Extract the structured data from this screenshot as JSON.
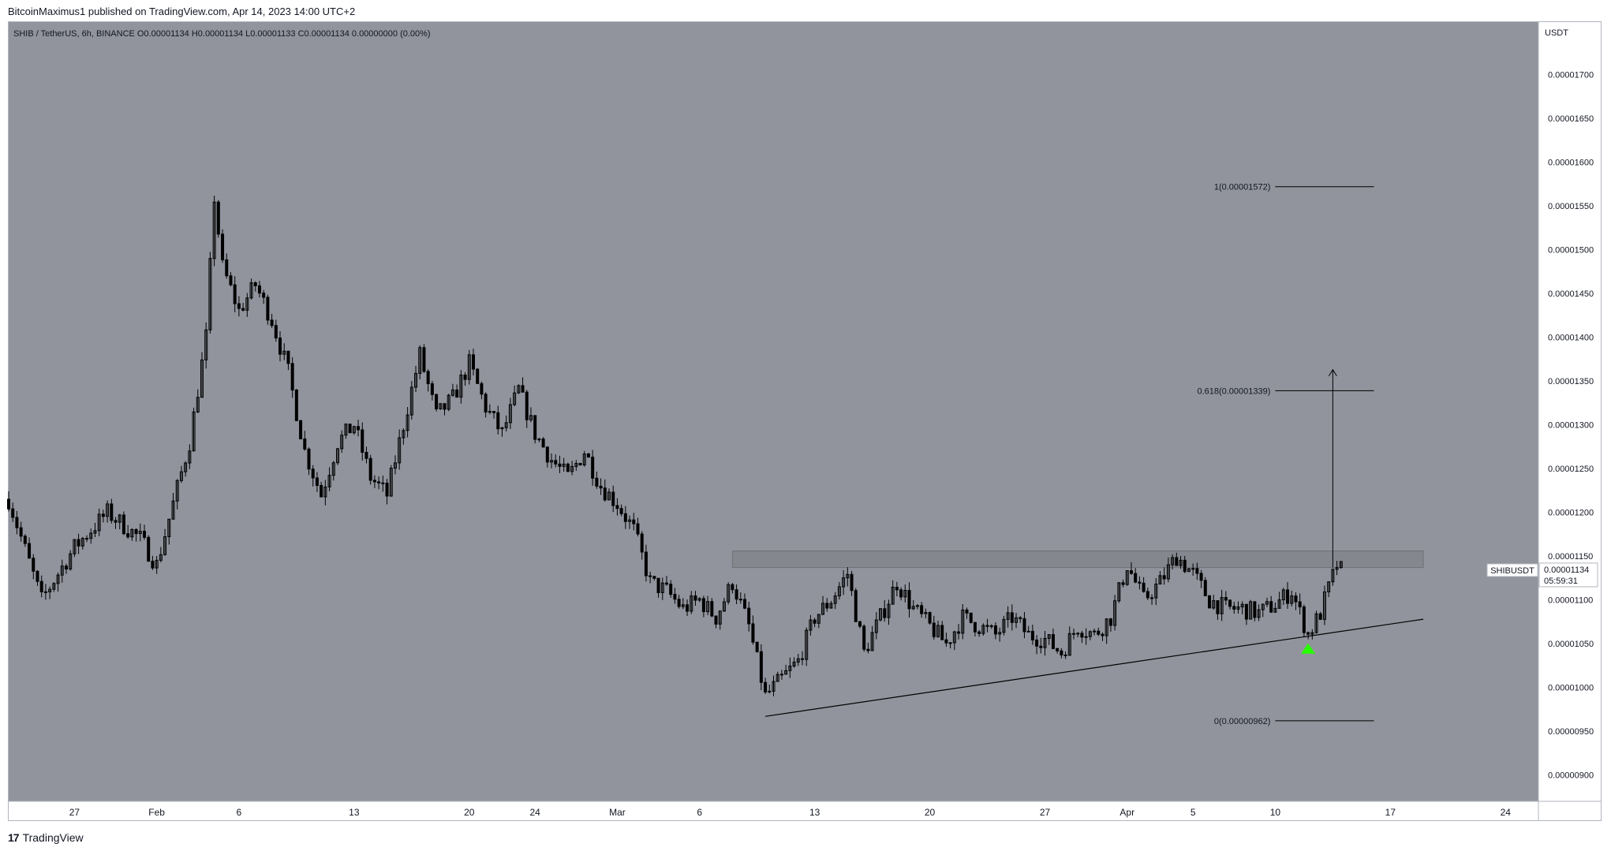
{
  "header": {
    "publish_line": "BitcoinMaximus1 published on TradingView.com, Apr 14, 2023 14:00 UTC+2"
  },
  "footer": {
    "brand": "TradingView"
  },
  "colors": {
    "plot_bg": "#91949d",
    "candle": "#000000",
    "zone": "#808388",
    "marker": "#26ff00"
  },
  "chart_data": {
    "type": "candlestick",
    "symbol_line": "SHIB / TetherUS, 6h, BINANCE",
    "ohlc_readout": {
      "O": "0.00001134",
      "H": "0.00001134",
      "L": "0.00001133",
      "C": "0.00001134",
      "change": "0.00000000 (0.00%)"
    },
    "y_axis": {
      "unit_label": "USDT",
      "ylim": [
        8.7e-06,
        1.76e-05
      ],
      "ticks": [
        "0.00001700",
        "0.00001650",
        "0.00001600",
        "0.00001550",
        "0.00001500",
        "0.00001450",
        "0.00001400",
        "0.00001350",
        "0.00001300",
        "0.00001250",
        "0.00001200",
        "0.00001150",
        "0.00001100",
        "0.00001050",
        "0.00001000",
        "0.00000950",
        "0.00000900"
      ]
    },
    "x_axis": {
      "xlim": [
        "2023-01-23",
        "2023-04-26"
      ],
      "ticks": [
        {
          "date": "2023-01-27",
          "label": "27"
        },
        {
          "date": "2023-02-01",
          "label": "Feb"
        },
        {
          "date": "2023-02-06",
          "label": "6"
        },
        {
          "date": "2023-02-13",
          "label": "13"
        },
        {
          "date": "2023-02-20",
          "label": "20"
        },
        {
          "date": "2023-02-24",
          "label": "24"
        },
        {
          "date": "2023-03-01",
          "label": "Mar"
        },
        {
          "date": "2023-03-06",
          "label": "6"
        },
        {
          "date": "2023-03-13",
          "label": "13"
        },
        {
          "date": "2023-03-20",
          "label": "20"
        },
        {
          "date": "2023-03-27",
          "label": "27"
        },
        {
          "date": "2023-04-01",
          "label": "Apr"
        },
        {
          "date": "2023-04-05",
          "label": "5"
        },
        {
          "date": "2023-04-10",
          "label": "10"
        },
        {
          "date": "2023-04-17",
          "label": "17"
        },
        {
          "date": "2023-04-24",
          "label": "24"
        }
      ]
    },
    "price_path": [
      [
        "2023-01-23",
        1.215e-05
      ],
      [
        "2023-01-25",
        1.1e-05
      ],
      [
        "2023-01-27",
        1.16e-05
      ],
      [
        "2023-01-29",
        1.2e-05
      ],
      [
        "2023-01-31",
        1.17e-05
      ],
      [
        "2023-02-01",
        1.14e-05
      ],
      [
        "2023-02-02",
        1.21e-05
      ],
      [
        "2023-02-03",
        1.28e-05
      ],
      [
        "2023-02-04",
        1.4e-05
      ],
      [
        "2023-02-04T12:00",
        1.56e-05
      ],
      [
        "2023-02-05",
        1.48e-05
      ],
      [
        "2023-02-06",
        1.43e-05
      ],
      [
        "2023-02-07",
        1.46e-05
      ],
      [
        "2023-02-08",
        1.42e-05
      ],
      [
        "2023-02-09",
        1.36e-05
      ],
      [
        "2023-02-10",
        1.27e-05
      ],
      [
        "2023-02-11",
        1.22e-05
      ],
      [
        "2023-02-12",
        1.28e-05
      ],
      [
        "2023-02-13",
        1.3e-05
      ],
      [
        "2023-02-14",
        1.24e-05
      ],
      [
        "2023-02-15",
        1.22e-05
      ],
      [
        "2023-02-16",
        1.3e-05
      ],
      [
        "2023-02-17",
        1.38e-05
      ],
      [
        "2023-02-18",
        1.31e-05
      ],
      [
        "2023-02-19",
        1.33e-05
      ],
      [
        "2023-02-20",
        1.37e-05
      ],
      [
        "2023-02-21",
        1.32e-05
      ],
      [
        "2023-02-22",
        1.29e-05
      ],
      [
        "2023-02-23",
        1.34e-05
      ],
      [
        "2023-02-24",
        1.29e-05
      ],
      [
        "2023-02-25",
        1.26e-05
      ],
      [
        "2023-02-26",
        1.24e-05
      ],
      [
        "2023-02-27",
        1.27e-05
      ],
      [
        "2023-02-28",
        1.23e-05
      ],
      [
        "2023-03-01",
        1.21e-05
      ],
      [
        "2023-03-02",
        1.18e-05
      ],
      [
        "2023-03-03",
        1.12e-05
      ],
      [
        "2023-03-04",
        1.11e-05
      ],
      [
        "2023-03-05",
        1.09e-05
      ],
      [
        "2023-03-06",
        1.1e-05
      ],
      [
        "2023-03-07",
        1.08e-05
      ],
      [
        "2023-03-08",
        1.12e-05
      ],
      [
        "2023-03-09",
        1.07e-05
      ],
      [
        "2023-03-10",
        9.9e-06
      ],
      [
        "2023-03-11",
        1.01e-05
      ],
      [
        "2023-03-12",
        1.03e-05
      ],
      [
        "2023-03-13",
        1.08e-05
      ],
      [
        "2023-03-14",
        1.1e-05
      ],
      [
        "2023-03-15",
        1.13e-05
      ],
      [
        "2023-03-16",
        1.04e-05
      ],
      [
        "2023-03-17",
        1.08e-05
      ],
      [
        "2023-03-18",
        1.12e-05
      ],
      [
        "2023-03-19",
        1.09e-05
      ],
      [
        "2023-03-20",
        1.07e-05
      ],
      [
        "2023-03-21",
        1.05e-05
      ],
      [
        "2023-03-22",
        1.08e-05
      ],
      [
        "2023-03-23",
        1.07e-05
      ],
      [
        "2023-03-24",
        1.06e-05
      ],
      [
        "2023-03-25",
        1.08e-05
      ],
      [
        "2023-03-26",
        1.06e-05
      ],
      [
        "2023-03-27",
        1.055e-05
      ],
      [
        "2023-03-28",
        1.04e-05
      ],
      [
        "2023-03-29",
        1.07e-05
      ],
      [
        "2023-03-30",
        1.06e-05
      ],
      [
        "2023-03-31",
        1.08e-05
      ],
      [
        "2023-04-01",
        1.14e-05
      ],
      [
        "2023-04-02",
        1.1e-05
      ],
      [
        "2023-04-03",
        1.12e-05
      ],
      [
        "2023-04-04",
        1.15e-05
      ],
      [
        "2023-04-05",
        1.13e-05
      ],
      [
        "2023-04-06",
        1.1e-05
      ],
      [
        "2023-04-07",
        1.09e-05
      ],
      [
        "2023-04-08",
        1.09e-05
      ],
      [
        "2023-04-09",
        1.085e-05
      ],
      [
        "2023-04-10",
        1.095e-05
      ],
      [
        "2023-04-11",
        1.11e-05
      ],
      [
        "2023-04-12",
        1.06e-05
      ],
      [
        "2023-04-12T18:00",
        1.085e-05
      ],
      [
        "2023-04-13",
        1.1e-05
      ],
      [
        "2023-04-13T18:00",
        1.14e-05
      ],
      [
        "2023-04-14",
        1.134e-05
      ]
    ],
    "resistance_zone": {
      "from": "2023-03-08",
      "to": "2023-04-19",
      "low": 1.137e-05,
      "high": 1.156e-05
    },
    "support_line": [
      [
        "2023-03-10",
        9.67e-06
      ],
      [
        "2023-04-19",
        1.078e-05
      ]
    ],
    "fib_levels": [
      {
        "label": "1(0.00001572)",
        "value": 1.572e-05
      },
      {
        "label": "0.618(0.00001339)",
        "value": 1.339e-05
      },
      {
        "label": "0(0.00000962)",
        "value": 9.62e-06
      }
    ],
    "fib_range": {
      "from": "2023-04-10",
      "to": "2023-04-16"
    },
    "arrow": {
      "date": "2023-04-13T12:00",
      "from": 1.137e-05,
      "to": 1.363e-05
    },
    "marker": {
      "date": "2023-04-12",
      "value": 1.045e-05
    },
    "last_price": {
      "symbol": "SHIBUSDT",
      "price": "0.00001134",
      "countdown": "05:59:31",
      "value": 1.134e-05
    }
  }
}
